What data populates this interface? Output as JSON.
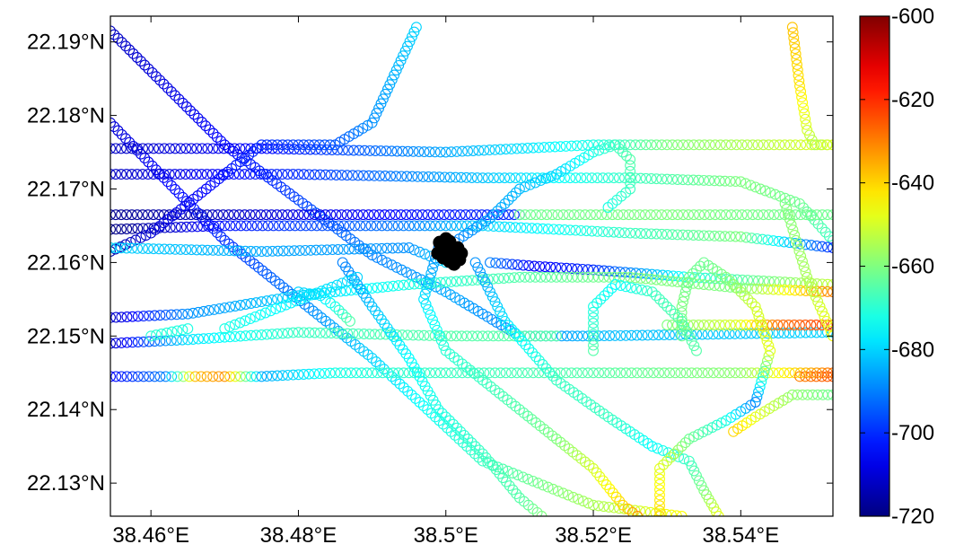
{
  "chart_data": {
    "type": "scatter",
    "title": "",
    "xlabel": "",
    "ylabel": "",
    "xlim": [
      38.4545,
      38.5525
    ],
    "ylim": [
      22.1255,
      22.1935
    ],
    "x_ticks": [
      {
        "value": 38.46,
        "label": "38.46°E"
      },
      {
        "value": 38.48,
        "label": "38.48°E"
      },
      {
        "value": 38.5,
        "label": "38.5°E"
      },
      {
        "value": 38.52,
        "label": "38.52°E"
      },
      {
        "value": 38.54,
        "label": "38.54°E"
      }
    ],
    "y_ticks": [
      {
        "value": 22.19,
        "label": "22.19°N"
      },
      {
        "value": 22.18,
        "label": "22.18°N"
      },
      {
        "value": 22.17,
        "label": "22.17°N"
      },
      {
        "value": 22.16,
        "label": "22.16°N"
      },
      {
        "value": 22.15,
        "label": "22.15°N"
      },
      {
        "value": 22.14,
        "label": "22.14°N"
      },
      {
        "value": 22.13,
        "label": "22.13°N"
      }
    ],
    "colorbar": {
      "colormap": "jet",
      "range": [
        -720,
        -600
      ],
      "ticks": [
        {
          "value": -600,
          "label": "-600"
        },
        {
          "value": -620,
          "label": "-620"
        },
        {
          "value": -640,
          "label": "-640"
        },
        {
          "value": -660,
          "label": "-660"
        },
        {
          "value": -680,
          "label": "-680"
        },
        {
          "value": -700,
          "label": "-700"
        },
        {
          "value": -720,
          "label": "-720"
        }
      ]
    },
    "marker": "open circle",
    "cluster": {
      "lon": 38.5005,
      "lat": 22.1615,
      "color": "#000000"
    },
    "tracks": [
      {
        "points": [
          [
            38.4545,
            22.1915,
            -712
          ],
          [
            38.47,
            22.176,
            -705
          ],
          [
            38.49,
            22.161,
            -690
          ],
          [
            38.5,
            22.156,
            -685
          ],
          [
            38.51,
            22.15,
            -690
          ],
          [
            38.52,
            22.15,
            -683
          ],
          [
            38.5525,
            22.1505,
            -680
          ]
        ]
      },
      {
        "points": [
          [
            38.4545,
            22.179,
            -710
          ],
          [
            38.47,
            22.163,
            -700
          ],
          [
            38.49,
            22.147,
            -680
          ],
          [
            38.505,
            22.133,
            -668
          ],
          [
            38.52,
            22.127,
            -655
          ],
          [
            38.532,
            22.1255,
            -645
          ]
        ]
      },
      {
        "points": [
          [
            38.4545,
            22.1755,
            -712
          ],
          [
            38.475,
            22.1755,
            -705
          ],
          [
            38.5,
            22.175,
            -685
          ],
          [
            38.52,
            22.176,
            -672
          ],
          [
            38.53,
            22.176,
            -660
          ],
          [
            38.5525,
            22.176,
            -648
          ]
        ]
      },
      {
        "points": [
          [
            38.4545,
            22.172,
            -712
          ],
          [
            38.48,
            22.172,
            -700
          ],
          [
            38.505,
            22.1715,
            -682
          ],
          [
            38.525,
            22.1715,
            -668
          ],
          [
            38.54,
            22.171,
            -660
          ],
          [
            38.548,
            22.168,
            -662
          ],
          [
            38.5525,
            22.163,
            -668
          ]
        ]
      },
      {
        "points": [
          [
            38.4545,
            22.1665,
            -718
          ],
          [
            38.48,
            22.1665,
            -708
          ],
          [
            38.51,
            22.1665,
            -700
          ]
        ]
      },
      {
        "points": [
          [
            38.51,
            22.1665,
            -662
          ],
          [
            38.53,
            22.1665,
            -660
          ],
          [
            38.5525,
            22.1665,
            -662
          ]
        ]
      },
      {
        "points": [
          [
            38.4545,
            22.1645,
            -720
          ],
          [
            38.47,
            22.165,
            -703
          ],
          [
            38.495,
            22.165,
            -690
          ],
          [
            38.505,
            22.165,
            -680
          ],
          [
            38.525,
            22.164,
            -668
          ],
          [
            38.54,
            22.1635,
            -660
          ],
          [
            38.5525,
            22.162,
            -700
          ]
        ]
      },
      {
        "points": [
          [
            38.4545,
            22.1615,
            -715
          ],
          [
            38.46,
            22.164,
            -710
          ],
          [
            38.475,
            22.176,
            -700
          ],
          [
            38.485,
            22.176,
            -695
          ],
          [
            38.49,
            22.179,
            -688
          ],
          [
            38.496,
            22.192,
            -680
          ]
        ]
      },
      {
        "points": [
          [
            38.4545,
            22.162,
            -680
          ],
          [
            38.475,
            22.1615,
            -685
          ],
          [
            38.495,
            22.162,
            -688
          ],
          [
            38.5,
            22.16,
            -680
          ]
        ]
      },
      {
        "points": [
          [
            38.506,
            22.16,
            -690
          ],
          [
            38.512,
            22.1595,
            -706
          ],
          [
            38.52,
            22.159,
            -700
          ],
          [
            38.533,
            22.158,
            -672
          ],
          [
            38.5525,
            22.157,
            -652
          ]
        ]
      },
      {
        "points": [
          [
            38.4545,
            22.1525,
            -712
          ],
          [
            38.465,
            22.153,
            -688
          ],
          [
            38.48,
            22.1555,
            -680
          ],
          [
            38.495,
            22.157,
            -672
          ],
          [
            38.51,
            22.158,
            -665
          ],
          [
            38.525,
            22.158,
            -660
          ],
          [
            38.54,
            22.1565,
            -660
          ],
          [
            38.5525,
            22.156,
            -630
          ]
        ]
      },
      {
        "points": [
          [
            38.4545,
            22.149,
            -712
          ],
          [
            38.465,
            22.1495,
            -678
          ],
          [
            38.48,
            22.1505,
            -668
          ],
          [
            38.5,
            22.15,
            -665
          ],
          [
            38.515,
            22.15,
            -665
          ]
        ]
      },
      {
        "points": [
          [
            38.4545,
            22.1445,
            -705
          ],
          [
            38.462,
            22.1445,
            -690
          ],
          [
            38.466,
            22.1445,
            -637
          ],
          [
            38.47,
            22.1445,
            -632
          ],
          [
            38.475,
            22.1445,
            -685
          ],
          [
            38.485,
            22.145,
            -672
          ],
          [
            38.5,
            22.145,
            -668
          ],
          [
            38.52,
            22.145,
            -665
          ],
          [
            38.54,
            22.145,
            -658
          ],
          [
            38.5525,
            22.145,
            -628
          ]
        ]
      },
      {
        "points": [
          [
            38.5525,
            22.1515,
            -622
          ],
          [
            38.545,
            22.1515,
            -628
          ],
          [
            38.54,
            22.1515,
            -648
          ],
          [
            38.53,
            22.1515,
            -660
          ]
        ]
      },
      {
        "points": [
          [
            38.548,
            22.1445,
            -630
          ],
          [
            38.5525,
            22.1445,
            -625
          ]
        ]
      },
      {
        "points": [
          [
            38.547,
            22.192,
            -638
          ],
          [
            38.548,
            22.184,
            -642
          ],
          [
            38.549,
            22.178,
            -650
          ],
          [
            38.55,
            22.176,
            -655
          ],
          [
            38.5525,
            22.176,
            -650
          ]
        ]
      },
      {
        "points": [
          [
            38.546,
            22.168,
            -660
          ],
          [
            38.549,
            22.158,
            -655
          ],
          [
            38.5525,
            22.15,
            -645
          ]
        ]
      },
      {
        "points": [
          [
            38.5525,
            22.142,
            -662
          ],
          [
            38.547,
            22.142,
            -658
          ],
          [
            38.542,
            22.139,
            -648
          ],
          [
            38.539,
            22.137,
            -640
          ]
        ]
      },
      {
        "points": [
          [
            38.499,
            22.162,
            -690
          ],
          [
            38.497,
            22.155,
            -678
          ],
          [
            38.5,
            22.148,
            -670
          ],
          [
            38.505,
            22.144,
            -668
          ],
          [
            38.51,
            22.14,
            -665
          ],
          [
            38.515,
            22.136,
            -660
          ],
          [
            38.52,
            22.132,
            -650
          ],
          [
            38.524,
            22.127,
            -640
          ],
          [
            38.526,
            22.1255,
            -632
          ]
        ]
      },
      {
        "points": [
          [
            38.504,
            22.16,
            -688
          ],
          [
            38.508,
            22.152,
            -678
          ],
          [
            38.515,
            22.144,
            -668
          ],
          [
            38.522,
            22.139,
            -668
          ],
          [
            38.528,
            22.135,
            -675
          ],
          [
            38.533,
            22.133,
            -668
          ],
          [
            38.535,
            22.129,
            -660
          ],
          [
            38.537,
            22.1255,
            -648
          ]
        ]
      },
      {
        "points": [
          [
            38.529,
            22.1255,
            -640
          ],
          [
            38.529,
            22.132,
            -648
          ],
          [
            38.533,
            22.136,
            -662
          ],
          [
            38.538,
            22.1385,
            -672
          ],
          [
            38.542,
            22.141,
            -690
          ],
          [
            38.544,
            22.148,
            -648
          ],
          [
            38.542,
            22.154,
            -650
          ],
          [
            38.538,
            22.158,
            -660
          ],
          [
            38.535,
            22.16,
            -662
          ],
          [
            38.533,
            22.158,
            -662
          ],
          [
            38.532,
            22.154,
            -660
          ],
          [
            38.532,
            22.15,
            -662
          ]
        ]
      },
      {
        "points": [
          [
            38.52,
            22.148,
            -665
          ],
          [
            38.52,
            22.154,
            -672
          ],
          [
            38.523,
            22.157,
            -675
          ],
          [
            38.528,
            22.156,
            -668
          ],
          [
            38.532,
            22.152,
            -665
          ],
          [
            38.534,
            22.148,
            -665
          ]
        ]
      },
      {
        "points": [
          [
            38.5,
            22.162,
            -690
          ],
          [
            38.506,
            22.166,
            -686
          ],
          [
            38.51,
            22.17,
            -683
          ],
          [
            38.515,
            22.172,
            -680
          ],
          [
            38.52,
            22.175,
            -672
          ],
          [
            38.523,
            22.176,
            -668
          ],
          [
            38.525,
            22.174,
            -665
          ],
          [
            38.525,
            22.17,
            -668
          ],
          [
            38.522,
            22.1675,
            -672
          ]
        ]
      },
      {
        "points": [
          [
            38.486,
            22.16,
            -690
          ],
          [
            38.49,
            22.154,
            -682
          ],
          [
            38.495,
            22.147,
            -675
          ],
          [
            38.499,
            22.14,
            -672
          ],
          [
            38.505,
            22.134,
            -668
          ],
          [
            38.51,
            22.128,
            -665
          ],
          [
            38.513,
            22.1255,
            -660
          ]
        ]
      },
      {
        "points": [
          [
            38.47,
            22.151,
            -672
          ],
          [
            38.488,
            22.158,
            -680
          ]
        ]
      },
      {
        "points": [
          [
            38.48,
            22.156,
            -680
          ],
          [
            38.483,
            22.1555,
            -678
          ],
          [
            38.485,
            22.154,
            -672
          ],
          [
            38.487,
            22.152,
            -665
          ]
        ]
      },
      {
        "points": [
          [
            38.46,
            22.15,
            -670
          ],
          [
            38.465,
            22.151,
            -672
          ]
        ]
      }
    ]
  }
}
